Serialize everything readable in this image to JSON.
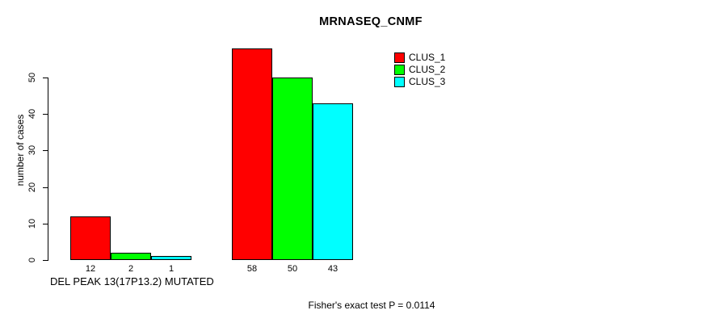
{
  "title": "MRNASEQ_CNMF",
  "y_axis_label": "number of cases",
  "x_group_label": "DEL PEAK 13(17P13.2) MUTATED",
  "footer_annotation": "Fisher's exact test P = 0.0114",
  "colors": {
    "clus_1": "#ff0000",
    "clus_2": "#00ff00",
    "clus_3": "#00ffff",
    "bar_border": "#000000",
    "background": "#ffffff",
    "text": "#000000"
  },
  "legend": {
    "items": [
      {
        "label": "CLUS_1",
        "color": "#ff0000"
      },
      {
        "label": "CLUS_2",
        "color": "#00ff00"
      },
      {
        "label": "CLUS_3",
        "color": "#00ffff"
      }
    ]
  },
  "chart_data": {
    "type": "bar",
    "title": "MRNASEQ_CNMF",
    "xlabel": "",
    "ylabel": "number of cases",
    "categories": [
      "DEL PEAK 13(17P13.2) MUTATED",
      ""
    ],
    "series": [
      {
        "name": "CLUS_1",
        "color": "#ff0000",
        "values": [
          12,
          58
        ]
      },
      {
        "name": "CLUS_2",
        "color": "#00ff00",
        "values": [
          2,
          50
        ]
      },
      {
        "name": "CLUS_3",
        "color": "#00ffff",
        "values": [
          1,
          43
        ]
      }
    ],
    "bar_value_labels": [
      [
        12,
        2,
        1
      ],
      [
        58,
        50,
        43
      ]
    ],
    "yticks": [
      0,
      10,
      20,
      30,
      40,
      50
    ],
    "ylim": [
      0,
      58
    ],
    "grid": false,
    "legend_position": "top-right",
    "annotation": "Fisher's exact test P = 0.0114"
  }
}
